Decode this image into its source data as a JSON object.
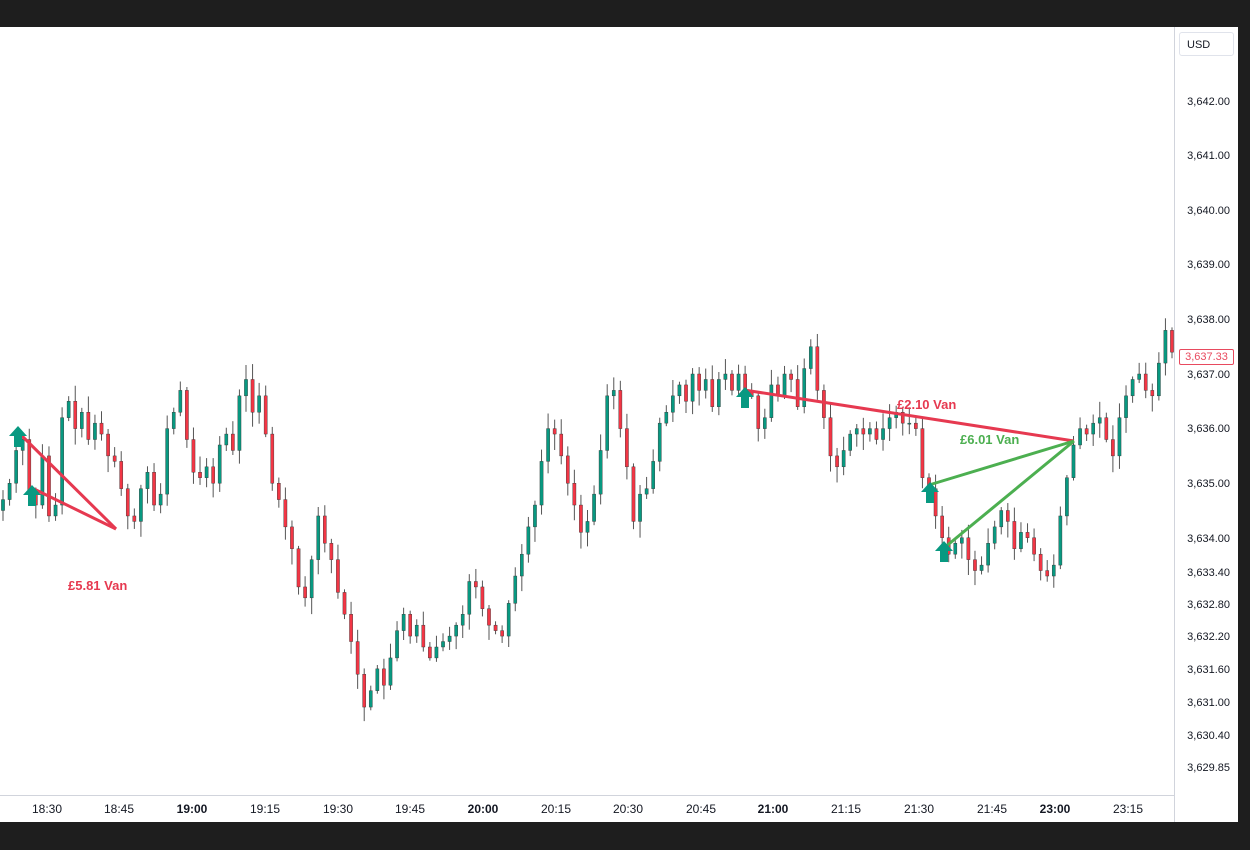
{
  "currency": "USD",
  "last_price": "3,637.33",
  "colors": {
    "up": "#089981",
    "down": "#f23645",
    "wick": "#555555",
    "loss": "#e63950",
    "profit": "#4caf50",
    "marker": "#089981"
  },
  "chart_data": {
    "type": "candlestick",
    "y_ticks": [
      "3,642.00",
      "3,641.00",
      "3,640.00",
      "3,639.00",
      "3,638.00",
      "3,637.00",
      "3,636.00",
      "3,635.00",
      "3,634.00",
      "3,633.40",
      "3,632.80",
      "3,632.20",
      "3,631.60",
      "3,631.00",
      "3,630.40",
      "3,629.85"
    ],
    "x_ticks": [
      {
        "label": "18:30",
        "bold": false
      },
      {
        "label": "18:45",
        "bold": false
      },
      {
        "label": "19:00",
        "bold": true
      },
      {
        "label": "19:15",
        "bold": false
      },
      {
        "label": "19:30",
        "bold": false
      },
      {
        "label": "19:45",
        "bold": false
      },
      {
        "label": "20:00",
        "bold": true
      },
      {
        "label": "20:15",
        "bold": false
      },
      {
        "label": "20:30",
        "bold": false
      },
      {
        "label": "20:45",
        "bold": false
      },
      {
        "label": "21:00",
        "bold": true
      },
      {
        "label": "21:15",
        "bold": false
      },
      {
        "label": "21:30",
        "bold": false
      },
      {
        "label": "21:45",
        "bold": false
      },
      {
        "label": "23:00",
        "bold": true
      },
      {
        "label": "23:15",
        "bold": false
      }
    ],
    "candles_close": [
      3634.7,
      3635.0,
      3635.6,
      3635.8,
      3634.8,
      3634.6,
      3635.5,
      3634.4,
      3634.6,
      3636.2,
      3636.5,
      3636.0,
      3636.3,
      3635.8,
      3636.1,
      3635.9,
      3635.5,
      3635.4,
      3634.9,
      3634.4,
      3634.3,
      3634.9,
      3635.2,
      3634.6,
      3634.8,
      3636.0,
      3636.3,
      3636.7,
      3635.8,
      3635.2,
      3635.1,
      3635.3,
      3635.0,
      3635.7,
      3635.9,
      3635.6,
      3636.6,
      3636.9,
      3636.3,
      3636.6,
      3635.9,
      3635.0,
      3634.7,
      3634.2,
      3633.8,
      3633.1,
      3632.9,
      3633.6,
      3634.4,
      3633.9,
      3633.6,
      3633.0,
      3632.6,
      3632.1,
      3631.5,
      3630.9,
      3631.2,
      3631.6,
      3631.3,
      3631.8,
      3632.3,
      3632.6,
      3632.2,
      3632.4,
      3632.0,
      3631.8,
      3632.0,
      3632.1,
      3632.2,
      3632.4,
      3632.6,
      3633.2,
      3633.1,
      3632.7,
      3632.4,
      3632.3,
      3632.2,
      3632.8,
      3633.3,
      3633.7,
      3634.2,
      3634.6,
      3635.4,
      3636.0,
      3635.9,
      3635.5,
      3635.0,
      3634.6,
      3634.1,
      3634.3,
      3634.8,
      3635.6,
      3636.6,
      3636.7,
      3636.0,
      3635.3,
      3634.3,
      3634.8,
      3634.9,
      3635.4,
      3636.1,
      3636.3,
      3636.6,
      3636.8,
      3636.5,
      3637.0,
      3636.7,
      3636.9,
      3636.4,
      3636.9,
      3637.0,
      3636.7,
      3637.0,
      3636.7,
      3636.6,
      3636.0,
      3636.2,
      3636.8,
      3636.6,
      3637.0,
      3636.9,
      3636.4,
      3637.1,
      3637.5,
      3636.7,
      3636.2,
      3635.5,
      3635.3,
      3635.6,
      3635.9,
      3636.0,
      3635.9,
      3636.0,
      3635.8,
      3636.0,
      3636.2,
      3636.3,
      3636.1,
      3636.1,
      3636.0,
      3635.1,
      3634.9,
      3634.4,
      3634.0,
      3633.7,
      3633.9,
      3634.0,
      3633.6,
      3633.4,
      3633.5,
      3633.9,
      3634.2,
      3634.5,
      3634.3,
      3633.8,
      3634.1,
      3634.0,
      3633.7,
      3633.4,
      3633.3,
      3633.5,
      3634.4,
      3635.1,
      3635.7,
      3636.0,
      3635.9,
      3636.1,
      3636.2,
      3635.8,
      3635.5,
      3636.2,
      3636.6,
      3636.9,
      3637.0,
      3636.7,
      3636.6,
      3637.2,
      3637.8,
      3637.4
    ]
  },
  "trades": [
    {
      "label": "£5.81 Van",
      "kind": "loss"
    },
    {
      "label": "£2.10 Van",
      "kind": "loss"
    },
    {
      "label": "£6.01 Van",
      "kind": "profit"
    }
  ]
}
